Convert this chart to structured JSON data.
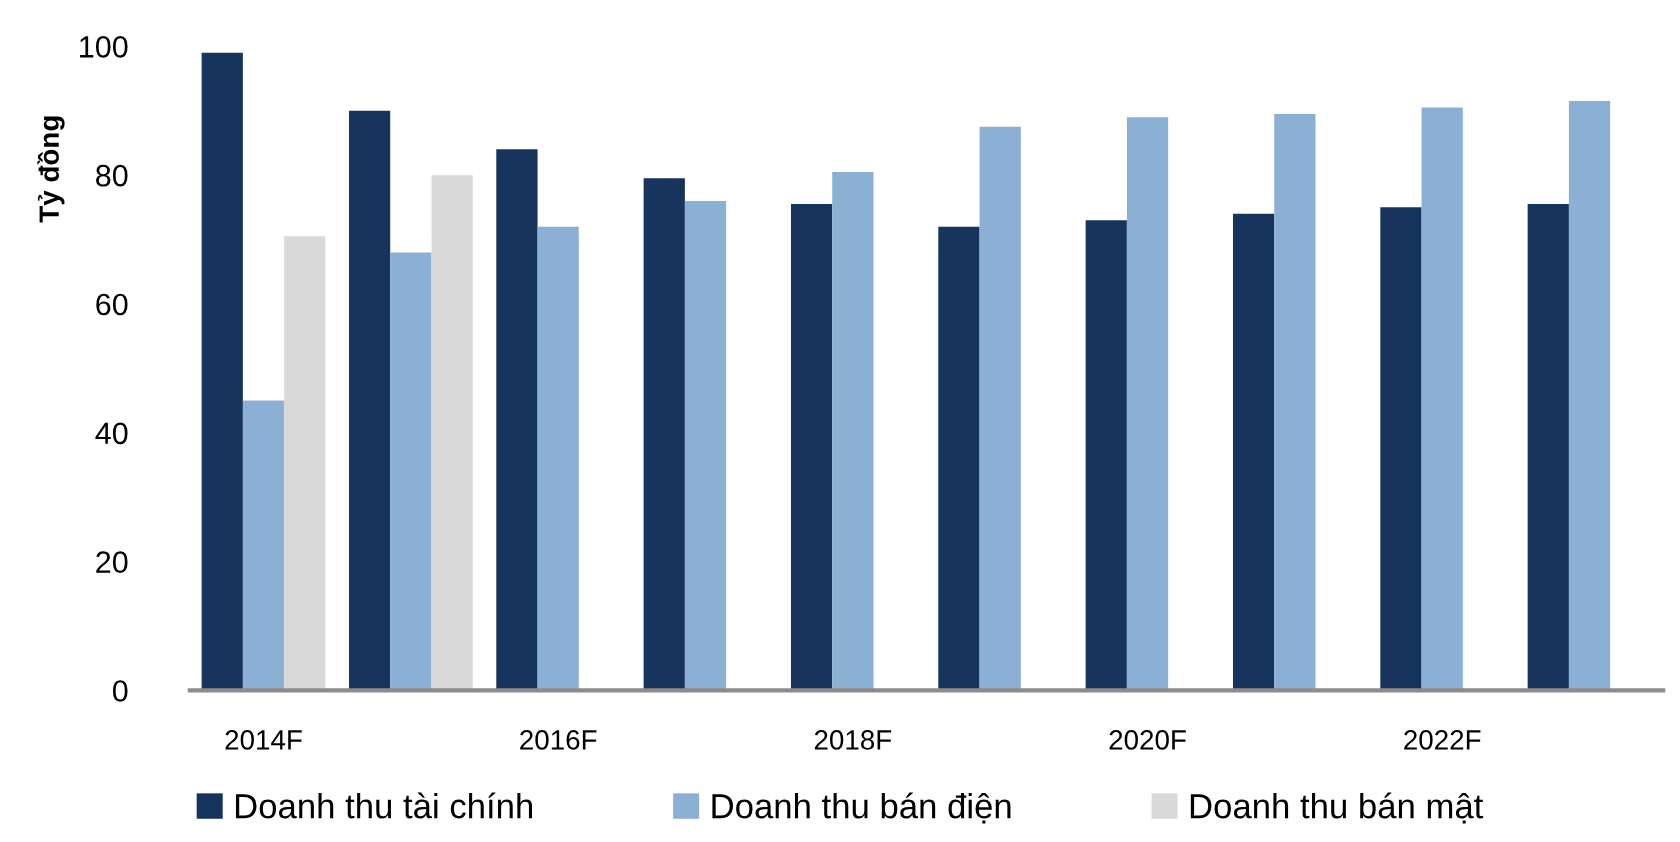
{
  "chart_data": {
    "type": "bar",
    "ylabel": "Tỷ đồng",
    "categories": [
      "2014F",
      null,
      "2016F",
      null,
      "2018F",
      null,
      "2020F",
      null,
      "2022F",
      null
    ],
    "series": [
      {
        "name": "Doanh thu tài chính",
        "color": "#17345c",
        "values": [
          99,
          90,
          84,
          79.5,
          75.5,
          72,
          73,
          74,
          75,
          75.5
        ]
      },
      {
        "name": "Doanh thu bán điện",
        "color": "#8cb0d3",
        "values": [
          45,
          68,
          72,
          76,
          80.5,
          87.5,
          89,
          89.5,
          90.5,
          91.5
        ]
      },
      {
        "name": "Doanh thu bán mật",
        "color": "#d9d9d9",
        "values": [
          70.5,
          80,
          null,
          null,
          null,
          null,
          null,
          null,
          null,
          null
        ]
      }
    ],
    "ylim": [
      0,
      100
    ],
    "yticks": [
      0,
      20,
      40,
      60,
      80,
      100
    ],
    "grid": false,
    "legend": "bottom"
  }
}
